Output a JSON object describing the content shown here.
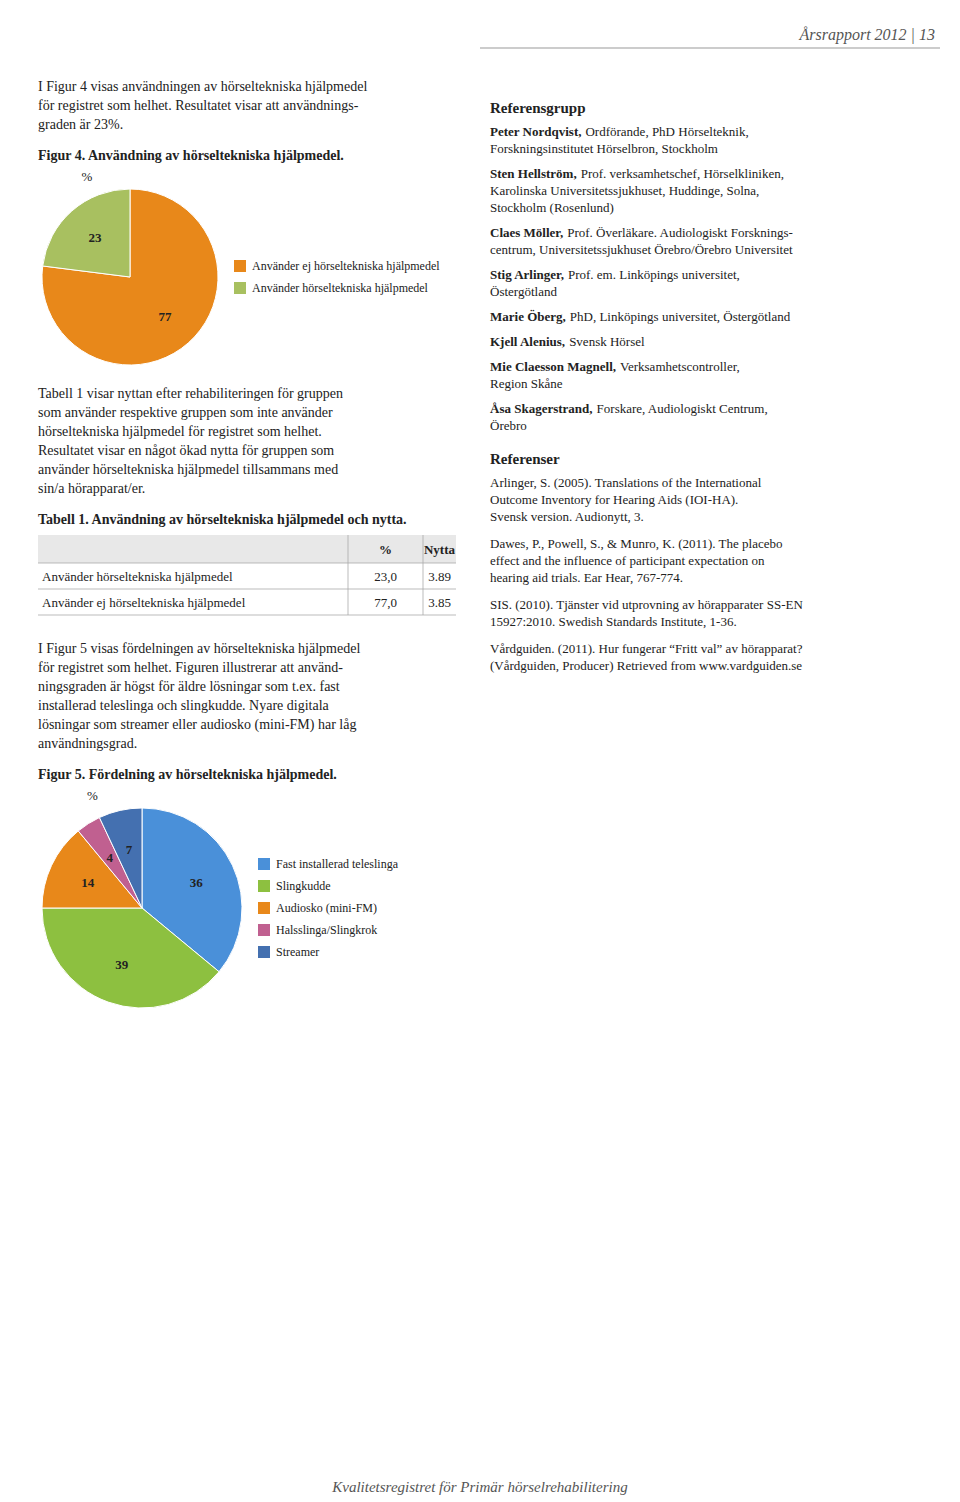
{
  "chart_data": [
    {
      "type": "pie",
      "title": "Figur 4. Användning av hörseltekniska hjälpmedel.",
      "subtitle": "%",
      "categories": [
        "Använder ej hörseltekniska hjälpmedel",
        "Använder hörseltekniska hjälpmedel"
      ],
      "values": [
        77,
        23
      ],
      "colors": [
        "#E8881A",
        "#A8C060"
      ],
      "data_labels": true,
      "legend": "right"
    },
    {
      "type": "table",
      "title": "Tabell 1. Användning av hörseltekniska hjälpmedel och nytta.",
      "columns": [
        "%",
        "Nytta"
      ],
      "rows": [
        [
          "Använder hörseltekniska hjälpmedel",
          "23,0",
          "3.89"
        ],
        [
          "Använder ej hörseltekniska hjälpmedel",
          "77,0",
          "3.85"
        ]
      ]
    },
    {
      "type": "pie",
      "title": "Figur 5. Fördelning av hörseltekniska hjälpmedel.",
      "subtitle": "%",
      "categories": [
        "Fast installerad teleslinga",
        "Slingkudde",
        "Audiosko (mini-FM)",
        "Halsslinga/Slingkrok",
        "Streamer"
      ],
      "values": [
        36,
        39,
        14,
        4,
        7
      ],
      "colors": [
        "#4A90D9",
        "#8DC040",
        "#E8881A",
        "#C06090",
        "#4470B0"
      ],
      "data_labels": true,
      "legend": "right"
    }
  ],
  "header": "Årsrapport 2012 | 13",
  "footer": "Kvalitetsregistret för Primär hörselrehabilitering",
  "paragraphs": [
    [
      "I Figur 4 visas användningen av hörseltekniska hjälpmedel",
      "för registret som helhet. Resultatet visar att användnings-",
      "graden är 23%."
    ],
    [
      "Tabell 1 visar nyttan efter rehabiliteringen för gruppen",
      "som använder respektive gruppen som inte använder",
      "hörseltekniska hjälpmedel för registret som helhet.",
      "Resultatet visar en något ökad nytta för gruppen som",
      "använder hörseltekniska hjälpmedel tillsammans med",
      "sin/a hörapparat/er."
    ],
    [
      "I Figur 5 visas fördelningen av hörseltekniska hjälpmedel",
      "för registret som helhet. Figuren illustrerar att använd-",
      "ningsgraden är högst för äldre lösningar som t.ex. fast",
      "installerad teleslinga och slingkudde. Nyare digitala",
      "lösningar som streamer eller audiosko (mini-FM) har låg",
      "användningsgrad."
    ]
  ],
  "reference_group": {
    "title": "Referensgrupp",
    "entries": [
      {
        "name": "Peter Nordqvist,",
        "lines": [
          "Ordförande, PhD Hörselteknik,",
          "Forskningsinstitutet Hörselbron, Stockholm"
        ]
      },
      {
        "name": "Sten Hellström,",
        "lines": [
          "Prof. verksamhetschef, Hörselkliniken,",
          "Karolinska Universitetssjukhuset, Huddinge, Solna,",
          "Stockholm (Rosenlund)"
        ]
      },
      {
        "name": "Claes Möller,",
        "lines": [
          "Prof. Överläkare. Audiologiskt Forsknings-",
          "centrum, Universitetssjukhuset Örebro/Örebro Universitet"
        ]
      },
      {
        "name": "Stig Arlinger,",
        "lines": [
          "Prof. em. Linköpings universitet,",
          "Östergötland"
        ]
      },
      {
        "name": "Marie Öberg,",
        "lines": [
          "PhD, Linköpings universitet, Östergötland"
        ]
      },
      {
        "name": "Kjell Alenius,",
        "lines": [
          "Svensk Hörsel"
        ]
      },
      {
        "name": "Mie Claesson Magnell,",
        "lines": [
          "Verksamhetscontroller,",
          "Region Skåne"
        ]
      },
      {
        "name": "Åsa Skagerstrand,",
        "lines": [
          "Forskare, Audiologiskt Centrum,",
          "Örebro"
        ]
      }
    ]
  },
  "references": {
    "title": "Referenser",
    "entries": [
      [
        "Arlinger, S. (2005). Translations of the International",
        "Outcome Inventory for Hearing Aids (IOI-HA).",
        "Svensk version. Audionytt, 3."
      ],
      [
        "Dawes, P., Powell, S., & Munro, K. (2011). The placebo",
        "effect and the influence of participant expectation on",
        "hearing aid trials. Ear Hear, 767-774."
      ],
      [
        "SIS. (2010). Tjänster vid utprovning av hörapparater SS-EN",
        "15927:2010. Swedish Standards Institute, 1-36."
      ],
      [
        "Vårdguiden. (2011). Hur fungerar “Fritt val” av hörapparat?",
        "(Vårdguiden, Producer) Retrieved from www.vardguiden.se"
      ]
    ]
  }
}
